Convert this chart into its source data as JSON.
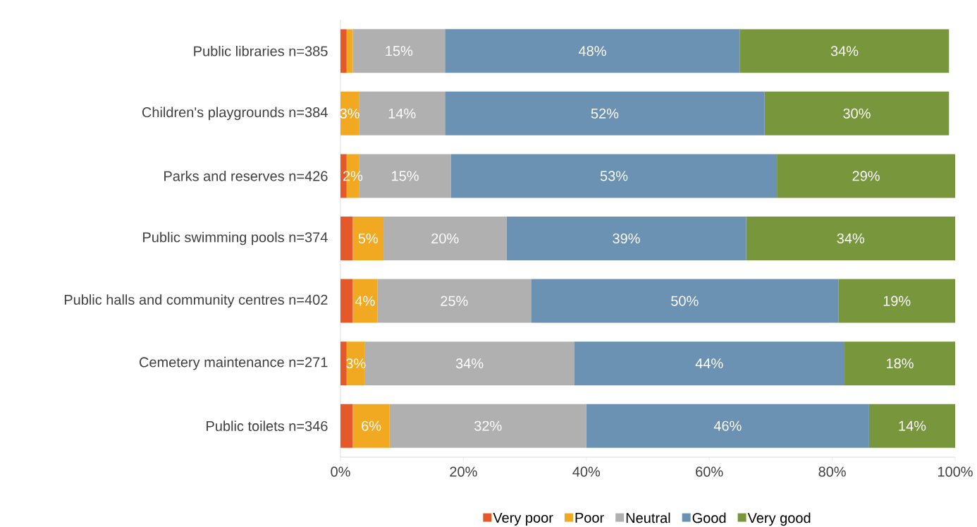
{
  "chart_data": {
    "type": "bar",
    "orientation": "horizontal",
    "stacked": true,
    "categories": [
      "Public libraries n=385",
      "Children's playgrounds n=384",
      "Parks and reserves n=426",
      "Public swimming pools n=374",
      "Public halls and community centres n=402",
      "Cemetery maintenance n=271",
      "Public toilets n=346"
    ],
    "series": [
      {
        "name": "Very poor",
        "color": "#e5582a",
        "values": [
          1,
          0,
          1,
          2,
          2,
          1,
          2
        ],
        "value_labels": [
          null,
          null,
          null,
          null,
          null,
          null,
          null
        ]
      },
      {
        "name": "Poor",
        "color": "#f2a922",
        "values": [
          1,
          3,
          2,
          5,
          4,
          3,
          6
        ],
        "value_labels": [
          null,
          "3%",
          "2%",
          "5%",
          "4%",
          "3%",
          "6%"
        ]
      },
      {
        "name": "Neutral",
        "color": "#b0b0b0",
        "values": [
          15,
          14,
          15,
          20,
          25,
          34,
          32
        ],
        "value_labels": [
          "15%",
          "14%",
          "15%",
          "20%",
          "25%",
          "34%",
          "32%"
        ]
      },
      {
        "name": "Good",
        "color": "#6b92b3",
        "values": [
          48,
          52,
          53,
          39,
          50,
          44,
          46
        ],
        "value_labels": [
          "48%",
          "52%",
          "53%",
          "39%",
          "50%",
          "44%",
          "46%"
        ]
      },
      {
        "name": "Very good",
        "color": "#78963c",
        "values": [
          34,
          30,
          29,
          34,
          19,
          18,
          14
        ],
        "value_labels": [
          "34%",
          "30%",
          "29%",
          "34%",
          "19%",
          "18%",
          "14%"
        ]
      }
    ],
    "xlim": [
      0,
      100
    ],
    "xticks": [
      {
        "value": 0,
        "label": "0%"
      },
      {
        "value": 20,
        "label": "20%"
      },
      {
        "value": 40,
        "label": "40%"
      },
      {
        "value": 60,
        "label": "60%"
      },
      {
        "value": 80,
        "label": "80%"
      },
      {
        "value": 100,
        "label": "100%"
      }
    ],
    "grid": false,
    "legend": "bottom"
  }
}
